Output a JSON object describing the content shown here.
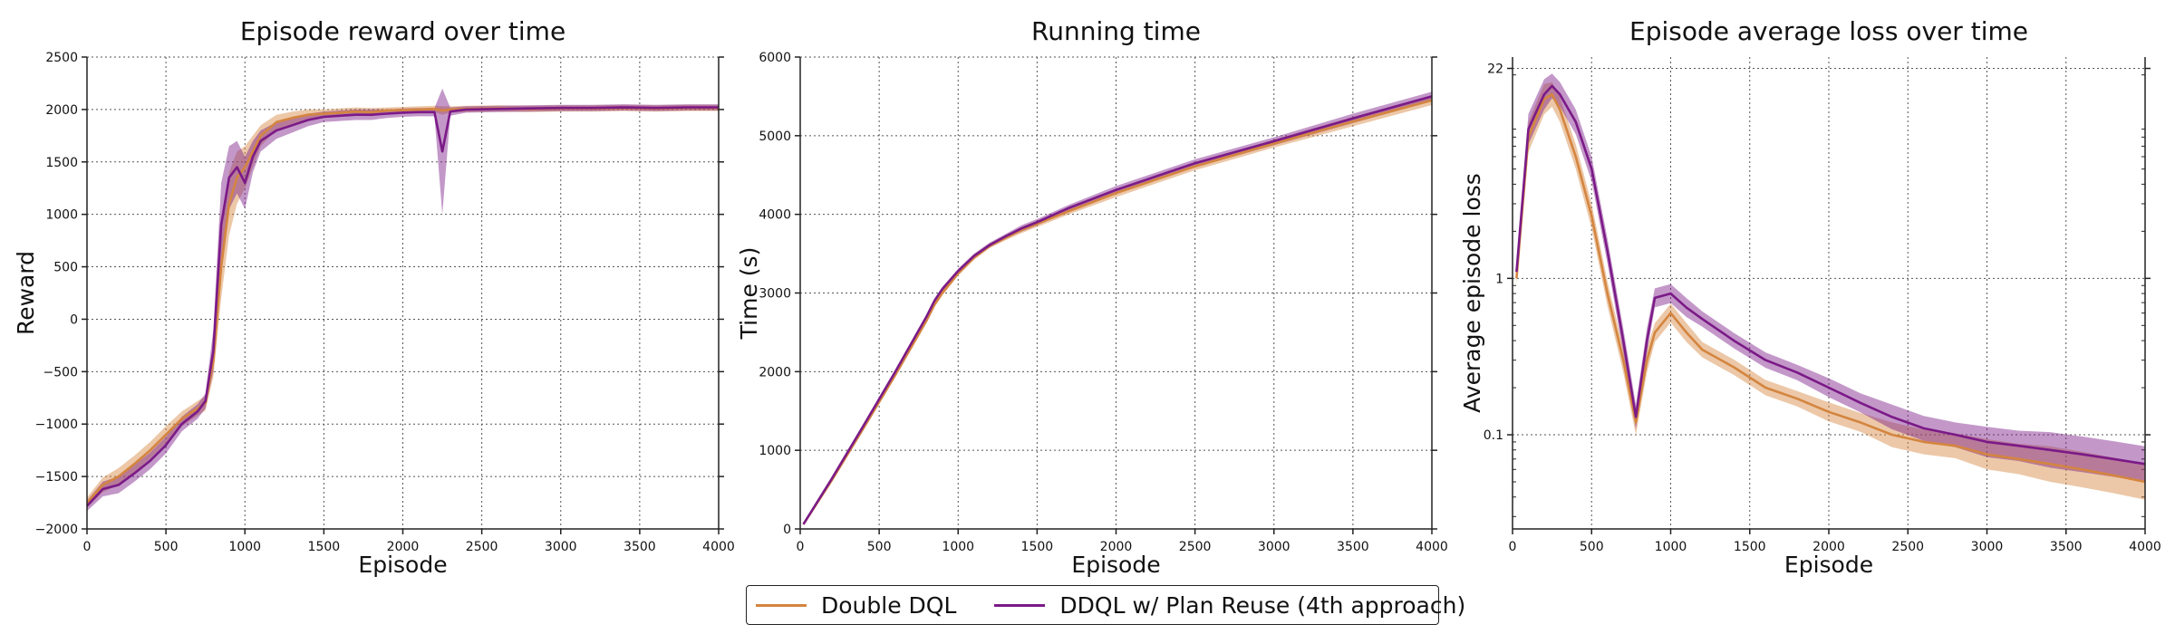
{
  "colors": {
    "series_a": "#d4853f",
    "series_b": "#7b1a87"
  },
  "legend": [
    {
      "name": "Double DQL",
      "color": "#d4853f"
    },
    {
      "name": "DDQL w/ Plan Reuse (4th approach)",
      "color": "#7b1a87"
    }
  ],
  "chart_data": [
    {
      "type": "line",
      "title": "Episode reward over time",
      "xlabel": "Episode",
      "ylabel": "Reward",
      "xlim": [
        0,
        4000
      ],
      "ylim": [
        -2000,
        2500
      ],
      "yscale": "linear",
      "grid": true,
      "xticks": [
        0,
        500,
        1000,
        1500,
        2000,
        2500,
        3000,
        3500,
        4000
      ],
      "yticks": [
        -2000,
        -1500,
        -1000,
        -500,
        0,
        500,
        1000,
        1500,
        2000,
        2500
      ],
      "x": [
        0,
        100,
        200,
        300,
        400,
        500,
        600,
        700,
        750,
        800,
        850,
        900,
        950,
        1000,
        1050,
        1100,
        1200,
        1300,
        1400,
        1500,
        1600,
        1700,
        1800,
        1900,
        2000,
        2100,
        2200,
        2250,
        2300,
        2400,
        2600,
        2800,
        3000,
        3200,
        3400,
        3600,
        3800,
        4000
      ],
      "series": [
        {
          "name": "Double DQL",
          "values": [
            -1750,
            -1580,
            -1500,
            -1380,
            -1250,
            -1100,
            -950,
            -850,
            -800,
            -400,
            500,
            1100,
            1350,
            1450,
            1600,
            1750,
            1880,
            1920,
            1950,
            1960,
            1970,
            1980,
            1975,
            1990,
            1995,
            2000,
            2005,
            1990,
            2000,
            2005,
            2010,
            2005,
            2010,
            2010,
            2015,
            2010,
            2015,
            2015
          ],
          "band": [
            50,
            70,
            80,
            80,
            80,
            80,
            70,
            70,
            70,
            150,
            300,
            300,
            250,
            200,
            150,
            100,
            70,
            60,
            50,
            40,
            40,
            40,
            40,
            30,
            30,
            30,
            30,
            40,
            30,
            30,
            30,
            30,
            30,
            30,
            30,
            30,
            30,
            30
          ]
        },
        {
          "name": "DDQL w/ Plan Reuse (4th approach)",
          "values": [
            -1780,
            -1620,
            -1580,
            -1470,
            -1350,
            -1200,
            -1000,
            -880,
            -780,
            -300,
            900,
            1350,
            1450,
            1300,
            1550,
            1700,
            1800,
            1850,
            1900,
            1930,
            1940,
            1950,
            1950,
            1960,
            1970,
            1975,
            1975,
            1600,
            1980,
            2000,
            2005,
            2010,
            2015,
            2015,
            2020,
            2015,
            2020,
            2020
          ],
          "band": [
            50,
            70,
            80,
            80,
            80,
            80,
            70,
            70,
            70,
            200,
            400,
            300,
            250,
            250,
            150,
            100,
            80,
            70,
            60,
            50,
            50,
            50,
            50,
            40,
            40,
            40,
            40,
            600,
            40,
            30,
            30,
            30,
            30,
            30,
            30,
            30,
            30,
            30
          ]
        }
      ]
    },
    {
      "type": "line",
      "title": "Running time",
      "xlabel": "Episode",
      "ylabel": "Time (s)",
      "xlim": [
        0,
        4000
      ],
      "ylim": [
        0,
        6000
      ],
      "yscale": "linear",
      "grid": true,
      "xticks": [
        0,
        500,
        1000,
        1500,
        2000,
        2500,
        3000,
        3500,
        4000
      ],
      "yticks": [
        0,
        1000,
        2000,
        3000,
        4000,
        5000,
        6000
      ],
      "x": [
        20,
        200,
        400,
        600,
        800,
        850,
        900,
        1000,
        1100,
        1200,
        1300,
        1400,
        1500,
        1700,
        2000,
        2500,
        3000,
        3500,
        4000
      ],
      "series": [
        {
          "name": "Double DQL",
          "values": [
            60,
            620,
            1280,
            1950,
            2650,
            2850,
            3000,
            3250,
            3450,
            3600,
            3700,
            3800,
            3880,
            4040,
            4270,
            4610,
            4900,
            5180,
            5450
          ],
          "band": [
            10,
            20,
            25,
            30,
            30,
            30,
            30,
            30,
            30,
            30,
            30,
            40,
            40,
            40,
            50,
            50,
            50,
            60,
            60
          ]
        },
        {
          "name": "DDQL w/ Plan Reuse (4th approach)",
          "values": [
            60,
            640,
            1310,
            1990,
            2700,
            2900,
            3050,
            3280,
            3470,
            3610,
            3720,
            3820,
            3900,
            4080,
            4310,
            4650,
            4930,
            5220,
            5500
          ],
          "band": [
            10,
            20,
            25,
            30,
            30,
            30,
            30,
            30,
            30,
            30,
            30,
            40,
            40,
            40,
            50,
            50,
            50,
            60,
            60
          ]
        }
      ]
    },
    {
      "type": "line",
      "title": "Episode average loss over time",
      "xlabel": "Episode",
      "ylabel": "Average episode loss",
      "xlim": [
        0,
        4000
      ],
      "ylim": [
        0.025,
        26
      ],
      "yscale": "log",
      "grid": true,
      "xticks": [
        0,
        500,
        1000,
        1500,
        2000,
        2500,
        3000,
        3500,
        4000
      ],
      "yticks": [
        0.1,
        1,
        22
      ],
      "ytick_labels": [
        "0.1",
        "1",
        "22"
      ],
      "x": [
        25,
        100,
        200,
        250,
        300,
        400,
        500,
        600,
        700,
        780,
        850,
        900,
        1000,
        1100,
        1200,
        1400,
        1600,
        1800,
        2000,
        2200,
        2400,
        2600,
        2800,
        3000,
        3200,
        3400,
        3600,
        3800,
        4000
      ],
      "series": [
        {
          "name": "Double DQL",
          "values": [
            1.0,
            8.0,
            14.0,
            15.0,
            12.0,
            6.0,
            2.5,
            0.8,
            0.3,
            0.12,
            0.3,
            0.45,
            0.6,
            0.45,
            0.35,
            0.27,
            0.2,
            0.17,
            0.14,
            0.12,
            0.1,
            0.09,
            0.085,
            0.075,
            0.07,
            0.065,
            0.06,
            0.055,
            0.05
          ],
          "band_factor": [
            1.1,
            1.25,
            1.25,
            1.2,
            1.2,
            1.2,
            1.2,
            1.2,
            1.2,
            1.2,
            1.2,
            1.15,
            1.15,
            1.15,
            1.12,
            1.12,
            1.12,
            1.12,
            1.15,
            1.15,
            1.2,
            1.2,
            1.2,
            1.25,
            1.25,
            1.3,
            1.3,
            1.3,
            1.3
          ]
        },
        {
          "name": "DDQL w/ Plan Reuse (4th approach)",
          "values": [
            1.1,
            9.0,
            15.0,
            17.0,
            15.0,
            10.0,
            5.0,
            1.5,
            0.4,
            0.13,
            0.4,
            0.75,
            0.8,
            0.65,
            0.55,
            0.4,
            0.3,
            0.25,
            0.2,
            0.16,
            0.13,
            0.11,
            0.1,
            0.09,
            0.085,
            0.08,
            0.075,
            0.07,
            0.065
          ],
          "band_factor": [
            1.1,
            1.25,
            1.25,
            1.2,
            1.2,
            1.2,
            1.2,
            1.2,
            1.2,
            1.2,
            1.2,
            1.15,
            1.15,
            1.15,
            1.12,
            1.12,
            1.12,
            1.12,
            1.15,
            1.15,
            1.2,
            1.2,
            1.2,
            1.25,
            1.25,
            1.3,
            1.3,
            1.3,
            1.3
          ]
        }
      ]
    }
  ]
}
